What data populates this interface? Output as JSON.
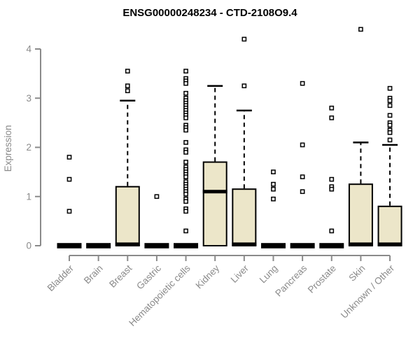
{
  "chart_data": {
    "type": "boxplot",
    "title": "ENSG00000248234 - CTD-2108O9.4",
    "ylabel": "Expression",
    "xlabel": "",
    "yticks": [
      0,
      1,
      2,
      3,
      4
    ],
    "ylim": [
      0,
      4.5
    ],
    "grid": false,
    "legend": false,
    "colors": {
      "box_fill": "#ECE6C9",
      "box_stroke": "#000000",
      "median": "#000000",
      "axis": "#8A8A8A",
      "tick_text": "#8A8A8A",
      "title_text": "#000000",
      "background": "#FFFFFF"
    },
    "categories": [
      "Bladder",
      "Brain",
      "Breast",
      "Gastric",
      "Hematopoietic cells",
      "Kidney",
      "Liver",
      "Lung",
      "Pancreas",
      "Prostate",
      "Skin",
      "Unknown / Other"
    ],
    "boxes": [
      {
        "category": "Bladder",
        "min": 0,
        "q1": 0,
        "median": 0,
        "q3": 0,
        "whisker_high": 0,
        "outliers": [
          1.8,
          1.35,
          0.7
        ]
      },
      {
        "category": "Brain",
        "min": 0,
        "q1": 0,
        "median": 0,
        "q3": 0,
        "whisker_high": 0,
        "outliers": []
      },
      {
        "category": "Breast",
        "min": 0,
        "q1": 0,
        "median": 0,
        "q3": 1.2,
        "whisker_high": 2.95,
        "outliers": [
          3.55,
          3.25,
          3.15
        ]
      },
      {
        "category": "Gastric",
        "min": 0,
        "q1": 0,
        "median": 0,
        "q3": 0,
        "whisker_high": 0,
        "outliers": [
          1.0
        ]
      },
      {
        "category": "Hematopoietic cells",
        "min": 0,
        "q1": 0,
        "median": 0,
        "q3": 0,
        "whisker_high": 0,
        "outliers": [
          3.55,
          3.4,
          3.35,
          3.3,
          3.1,
          3.0,
          2.95,
          2.9,
          2.85,
          2.8,
          2.75,
          2.7,
          2.65,
          2.6,
          2.45,
          2.4,
          2.35,
          2.1,
          1.95,
          1.9,
          1.7,
          1.6,
          1.55,
          1.5,
          1.45,
          1.4,
          1.3,
          1.25,
          1.2,
          1.15,
          1.1,
          1.05,
          0.95,
          0.9,
          0.75,
          0.7,
          0.3
        ]
      },
      {
        "category": "Kidney",
        "min": 0,
        "q1": 0,
        "median": 1.1,
        "q3": 1.7,
        "whisker_high": 3.25,
        "outliers": []
      },
      {
        "category": "Liver",
        "min": 0,
        "q1": 0,
        "median": 0,
        "q3": 1.15,
        "whisker_high": 2.75,
        "outliers": [
          4.2,
          3.25
        ]
      },
      {
        "category": "Lung",
        "min": 0,
        "q1": 0,
        "median": 0,
        "q3": 0,
        "whisker_high": 0,
        "outliers": [
          1.5,
          1.25,
          1.15,
          0.95
        ]
      },
      {
        "category": "Pancreas",
        "min": 0,
        "q1": 0,
        "median": 0,
        "q3": 0,
        "whisker_high": 0,
        "outliers": [
          3.3,
          2.05,
          1.4,
          1.1
        ]
      },
      {
        "category": "Prostate",
        "min": 0,
        "q1": 0,
        "median": 0,
        "q3": 0,
        "whisker_high": 0,
        "outliers": [
          2.8,
          2.6,
          1.35,
          1.2,
          1.15,
          0.3
        ]
      },
      {
        "category": "Skin",
        "min": 0,
        "q1": 0,
        "median": 0,
        "q3": 1.25,
        "whisker_high": 2.1,
        "outliers": [
          4.4
        ]
      },
      {
        "category": "Unknown / Other",
        "min": 0,
        "q1": 0,
        "median": 0,
        "q3": 0.8,
        "whisker_high": 2.05,
        "outliers": [
          3.2,
          3.0,
          2.95,
          2.85,
          2.65,
          2.5,
          2.45,
          2.35,
          2.3,
          2.15
        ]
      }
    ]
  }
}
